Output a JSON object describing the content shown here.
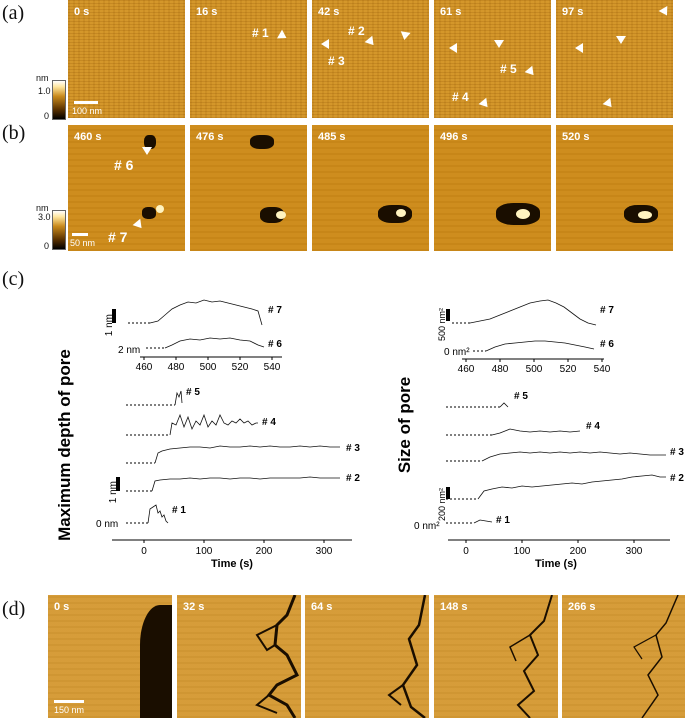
{
  "panels": {
    "a": {
      "label": "(a)",
      "times": [
        "0 s",
        "16 s",
        "42 s",
        "61 s",
        "97 s"
      ],
      "markers": [
        "# 1",
        "# 2",
        "# 3",
        "# 4",
        "# 5"
      ],
      "scalebar": "100 nm",
      "colorbar": {
        "unit": "nm",
        "max": "1.0",
        "min": "0"
      }
    },
    "b": {
      "label": "(b)",
      "times": [
        "460 s",
        "476 s",
        "485 s",
        "496 s",
        "520 s"
      ],
      "markers": [
        "# 6",
        "# 7"
      ],
      "scalebar": "50 nm",
      "colorbar": {
        "unit": "nm",
        "max": "3.0",
        "min": "0"
      }
    },
    "c": {
      "label": "(c)",
      "left_ylabel": "Maximum depth of pore",
      "right_ylabel": "Size of pore",
      "xlabel": "Time (s)",
      "top_ticks": [
        "460",
        "480",
        "500",
        "520",
        "540"
      ],
      "bottom_ticks": [
        "0",
        "100",
        "200",
        "300"
      ],
      "left_scale_top": "1 nm",
      "left_zero_top": "2 nm",
      "left_scale_bottom": "1 nm",
      "left_zero_bottom": "0 nm",
      "right_scale_top": "500 nm²",
      "right_zero_top": "0 nm²",
      "right_scale_bottom": "200 nm²",
      "right_zero_bottom": "0 nm²",
      "trace_labels": [
        "# 7",
        "# 6",
        "# 5",
        "# 4",
        "# 3",
        "# 2",
        "# 1"
      ]
    },
    "d": {
      "label": "(d)",
      "times": [
        "0 s",
        "32 s",
        "64 s",
        "148 s",
        "266 s"
      ],
      "scalebar": "150 nm"
    }
  },
  "colors": {
    "afm": "#cc8a1a",
    "pit": "#1a0e00",
    "trace": "#111111"
  }
}
